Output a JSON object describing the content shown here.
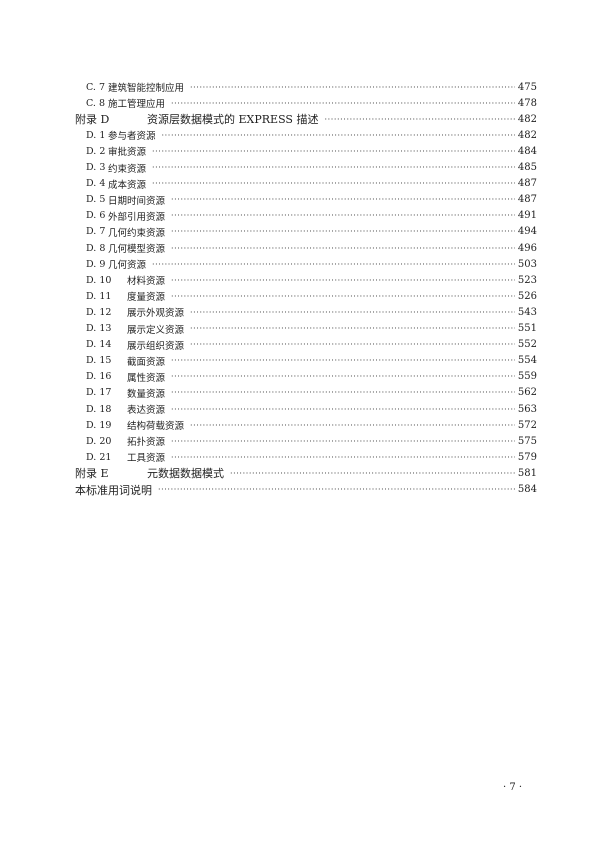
{
  "entries": [
    {
      "num": "C. 7",
      "title": "建筑智能控制应用",
      "page": "475",
      "level": "sub"
    },
    {
      "num": "C. 8",
      "title": "施工管理应用",
      "page": "478",
      "level": "sub"
    },
    {
      "num": "附录 D",
      "title": "资源层数据模式的 EXPRESS 描述",
      "page": "482",
      "level": "top"
    },
    {
      "num": "D. 1",
      "title": "参与者资源",
      "page": "482",
      "level": "sub"
    },
    {
      "num": "D. 2",
      "title": "审批资源",
      "page": "484",
      "level": "sub"
    },
    {
      "num": "D. 3",
      "title": "约束资源",
      "page": "485",
      "level": "sub"
    },
    {
      "num": "D. 4",
      "title": "成本资源",
      "page": "487",
      "level": "sub"
    },
    {
      "num": "D. 5",
      "title": "日期时间资源",
      "page": "487",
      "level": "sub"
    },
    {
      "num": "D. 6",
      "title": "外部引用资源",
      "page": "491",
      "level": "sub"
    },
    {
      "num": "D. 7",
      "title": "几何约束资源",
      "page": "494",
      "level": "sub"
    },
    {
      "num": "D. 8",
      "title": "几何模型资源",
      "page": "496",
      "level": "sub"
    },
    {
      "num": "D. 9",
      "title": "几何资源",
      "page": "503",
      "level": "sub"
    },
    {
      "num": "D. 10",
      "title": "材料资源",
      "page": "523",
      "level": "sub wide"
    },
    {
      "num": "D. 11",
      "title": "度量资源",
      "page": "526",
      "level": "sub wide"
    },
    {
      "num": "D. 12",
      "title": "展示外观资源",
      "page": "543",
      "level": "sub wide"
    },
    {
      "num": "D. 13",
      "title": "展示定义资源",
      "page": "551",
      "level": "sub wide"
    },
    {
      "num": "D. 14",
      "title": "展示组织资源",
      "page": "552",
      "level": "sub wide"
    },
    {
      "num": "D. 15",
      "title": "截面资源",
      "page": "554",
      "level": "sub wide"
    },
    {
      "num": "D. 16",
      "title": "属性资源",
      "page": "559",
      "level": "sub wide"
    },
    {
      "num": "D. 17",
      "title": "数量资源",
      "page": "562",
      "level": "sub wide"
    },
    {
      "num": "D. 18",
      "title": "表达资源",
      "page": "563",
      "level": "sub wide"
    },
    {
      "num": "D. 19",
      "title": "结构荷载资源",
      "page": "572",
      "level": "sub wide"
    },
    {
      "num": "D. 20",
      "title": "拓扑资源",
      "page": "575",
      "level": "sub wide"
    },
    {
      "num": "D. 21",
      "title": "工具资源",
      "page": "579",
      "level": "sub wide"
    },
    {
      "num": "附录 E",
      "title": "元数据数据模式",
      "page": "581",
      "level": "top"
    },
    {
      "num": "",
      "title": "本标准用词说明",
      "page": "584",
      "level": "top plain"
    }
  ],
  "footer": {
    "page_number": "· 7 ·"
  }
}
